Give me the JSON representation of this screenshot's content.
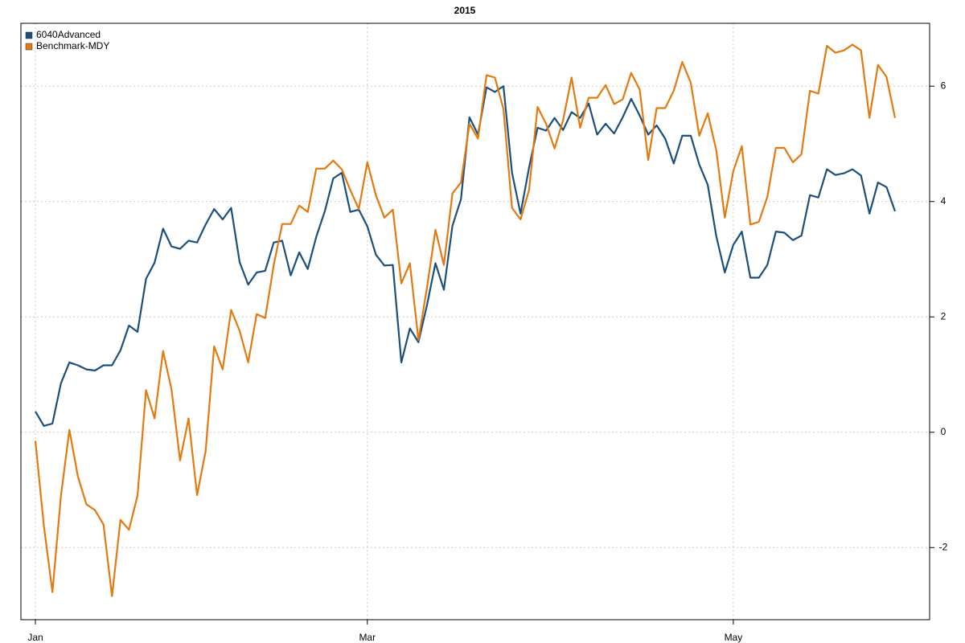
{
  "chart_data": {
    "type": "line",
    "title": "2015",
    "categories": [
      "Jan",
      null,
      null,
      null,
      null,
      null,
      null,
      null,
      null,
      null,
      null,
      null,
      null,
      null,
      null,
      null,
      null,
      null,
      null,
      null,
      null,
      null,
      null,
      null,
      null,
      null,
      null,
      null,
      null,
      null,
      null,
      null,
      null,
      null,
      null,
      null,
      null,
      null,
      null,
      "Mar",
      null,
      null,
      null,
      null,
      null,
      null,
      null,
      null,
      null,
      null,
      null,
      null,
      null,
      null,
      null,
      null,
      null,
      null,
      null,
      null,
      null,
      null,
      null,
      null,
      null,
      null,
      null,
      null,
      null,
      null,
      null,
      null,
      null,
      null,
      null,
      null,
      null,
      null,
      null,
      null,
      null,
      null,
      "May",
      null,
      null,
      null,
      null,
      null,
      null,
      null,
      null,
      null,
      null,
      null,
      null,
      null,
      null,
      null,
      null,
      null,
      null,
      null
    ],
    "series": [
      {
        "name": "6040Advanced",
        "color": "#1b4f7c",
        "values": [
          0.36,
          0.11,
          0.15,
          0.85,
          1.21,
          1.16,
          1.09,
          1.07,
          1.16,
          1.16,
          1.42,
          1.85,
          1.74,
          2.66,
          2.94,
          3.53,
          3.22,
          3.18,
          3.32,
          3.29,
          3.6,
          3.87,
          3.69,
          3.89,
          2.95,
          2.56,
          2.77,
          2.8,
          3.29,
          3.32,
          2.72,
          3.12,
          2.83,
          3.39,
          3.83,
          4.4,
          4.5,
          3.82,
          3.86,
          3.57,
          3.08,
          2.89,
          2.9,
          1.21,
          1.8,
          1.56,
          2.2,
          2.93,
          2.47,
          3.58,
          4.04,
          5.46,
          5.16,
          5.98,
          5.9,
          6.0,
          4.5,
          3.79,
          4.59,
          5.28,
          5.23,
          5.45,
          5.24,
          5.55,
          5.45,
          5.7,
          5.16,
          5.35,
          5.18,
          5.46,
          5.78,
          5.49,
          5.16,
          5.32,
          5.09,
          4.66,
          5.14,
          5.14,
          4.64,
          4.29,
          3.4,
          2.77,
          3.25,
          3.48,
          2.68,
          2.68,
          2.9,
          3.48,
          3.46,
          3.33,
          3.41,
          4.11,
          4.07,
          4.56,
          4.46,
          4.49,
          4.56,
          4.45,
          3.79,
          4.33,
          4.25,
          3.83
        ]
      },
      {
        "name": "Benchmark-MDY",
        "color": "#e3790f",
        "values": [
          -0.15,
          -1.63,
          -2.77,
          -1.1,
          0.04,
          -0.77,
          -1.25,
          -1.35,
          -1.6,
          -2.84,
          -1.52,
          -1.69,
          -1.1,
          0.73,
          0.24,
          1.41,
          0.74,
          -0.49,
          0.24,
          -1.09,
          -0.33,
          1.49,
          1.09,
          2.12,
          1.76,
          1.21,
          2.05,
          1.98,
          2.9,
          3.61,
          3.61,
          3.93,
          3.82,
          4.57,
          4.57,
          4.71,
          4.56,
          4.2,
          3.87,
          4.68,
          4.11,
          3.72,
          3.86,
          2.58,
          2.93,
          1.6,
          2.5,
          3.51,
          2.9,
          4.14,
          4.33,
          5.35,
          5.09,
          6.19,
          6.15,
          5.6,
          3.89,
          3.69,
          4.2,
          5.64,
          5.35,
          4.92,
          5.41,
          6.15,
          5.28,
          5.8,
          5.8,
          6.02,
          5.69,
          5.77,
          6.23,
          5.94,
          4.72,
          5.62,
          5.62,
          5.92,
          6.42,
          6.06,
          5.14,
          5.53,
          4.89,
          3.72,
          4.53,
          4.96,
          3.6,
          3.65,
          4.08,
          4.93,
          4.93,
          4.68,
          4.82,
          5.92,
          5.87,
          6.7,
          6.58,
          6.62,
          6.72,
          6.62,
          5.45,
          6.37,
          6.16,
          5.45
        ]
      }
    ],
    "ylim": [
      -3.25,
      7.09
    ],
    "yticks": [
      -2,
      0,
      2,
      4,
      6
    ],
    "grid": true,
    "legend": "top-left"
  }
}
